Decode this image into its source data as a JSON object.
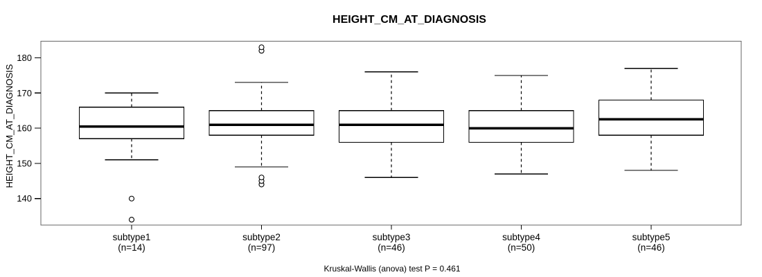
{
  "chart_data": {
    "type": "boxplot",
    "title": "HEIGHT_CM_AT_DIAGNOSIS",
    "xlabel": "",
    "ylabel": "HEIGHT_CM_AT_DIAGNOSIS",
    "caption": "Kruskal-Wallis (anova) test P = 0.461",
    "y_ticks": [
      140,
      150,
      160,
      170,
      180
    ],
    "ylim": [
      132.5,
      184.8
    ],
    "grid": false,
    "legend": "none",
    "colors": {
      "box_fill": "#ffffff",
      "box_stroke": "#000000",
      "median_stroke": "#000000",
      "frame_stroke": "#666666",
      "text": "#000000"
    },
    "groups": [
      {
        "label": "subtype1",
        "sublabel": "(n=14)",
        "n": 14,
        "whisker_low": 151,
        "q1": 157,
        "median": 160.5,
        "q3": 166,
        "whisker_high": 170,
        "outliers": [
          140,
          134
        ]
      },
      {
        "label": "subtype2",
        "sublabel": "(n=97)",
        "n": 97,
        "whisker_low": 149,
        "q1": 158,
        "median": 161,
        "q3": 165,
        "whisker_high": 173,
        "outliers": [
          144,
          145,
          146,
          182,
          183
        ]
      },
      {
        "label": "subtype3",
        "sublabel": "(n=46)",
        "n": 46,
        "whisker_low": 146,
        "q1": 156,
        "median": 161,
        "q3": 165,
        "whisker_high": 176,
        "outliers": []
      },
      {
        "label": "subtype4",
        "sublabel": "(n=50)",
        "n": 50,
        "whisker_low": 147,
        "q1": 156,
        "median": 160,
        "q3": 165,
        "whisker_high": 175,
        "outliers": []
      },
      {
        "label": "subtype5",
        "sublabel": "(n=46)",
        "n": 46,
        "whisker_low": 148,
        "q1": 158,
        "median": 162.5,
        "q3": 168,
        "whisker_high": 177,
        "outliers": []
      }
    ]
  }
}
